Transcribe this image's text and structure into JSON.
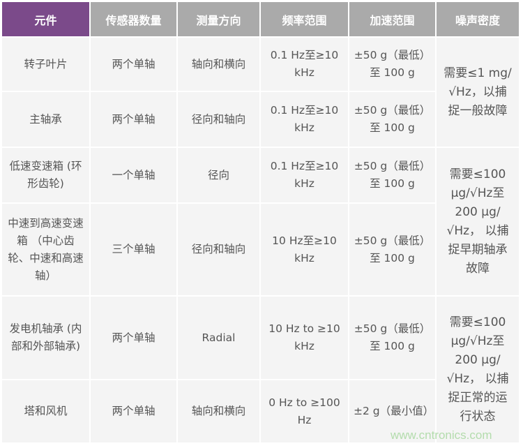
{
  "headers": [
    "元件",
    "传感器数量",
    "测量方向",
    "频率范围",
    "加速范围",
    "噪声密度"
  ],
  "rows": [
    {
      "component": "转子叶片",
      "count": "两个单轴",
      "direction": "轴向和横向",
      "freq": "0.1 Hz至≥10 kHz",
      "accel": "±50 g（最低）至 100 g"
    },
    {
      "component": "主轴承",
      "count": "两个单轴",
      "direction": "径向和轴向",
      "freq": "0.1 Hz至≥10 kHz",
      "accel": "±50 g（最低）至 100 g"
    },
    {
      "component": "低速变速箱 (环形齿轮)",
      "count": "一个单轴",
      "direction": "径向",
      "freq": "0.1 Hz至≥10 kHz",
      "accel": "±50 g（最低）至 100 g"
    },
    {
      "component": "中速到高速变速箱 （中心齿轮、中速和高速轴）",
      "count": "三个单轴",
      "direction": "径向和轴向",
      "freq": "10 Hz至≥10 kHz",
      "accel": "±50 g（最低）至 100 g"
    },
    {
      "component": "发电机轴承 (内部和外部轴承)",
      "count": "两个单轴",
      "direction": "Radial",
      "freq": "10 Hz to ≥10 kHz",
      "accel": "±50 g（最低）至 100 g"
    },
    {
      "component": "塔和风机",
      "count": "两个单轴",
      "direction": "轴向和横向",
      "freq": "0 Hz to ≥100 Hz",
      "accel": "±2 g（最小值）"
    }
  ],
  "noise": [
    "需要≤1 mg/√Hz，以捕捉一般故障",
    "需要≤100 μg/√Hz至200 μg/√Hz， 以捕捉早期轴承故障",
    "需要≤100 μg/√Hz至200 μg/√Hz， 以捕捉正常的运行状态"
  ],
  "watermark": "www.cntronics.com",
  "colors": {
    "header_accent": "#7b4a8a",
    "header": "#aaaaaa",
    "cell": "#f4f4f4"
  }
}
